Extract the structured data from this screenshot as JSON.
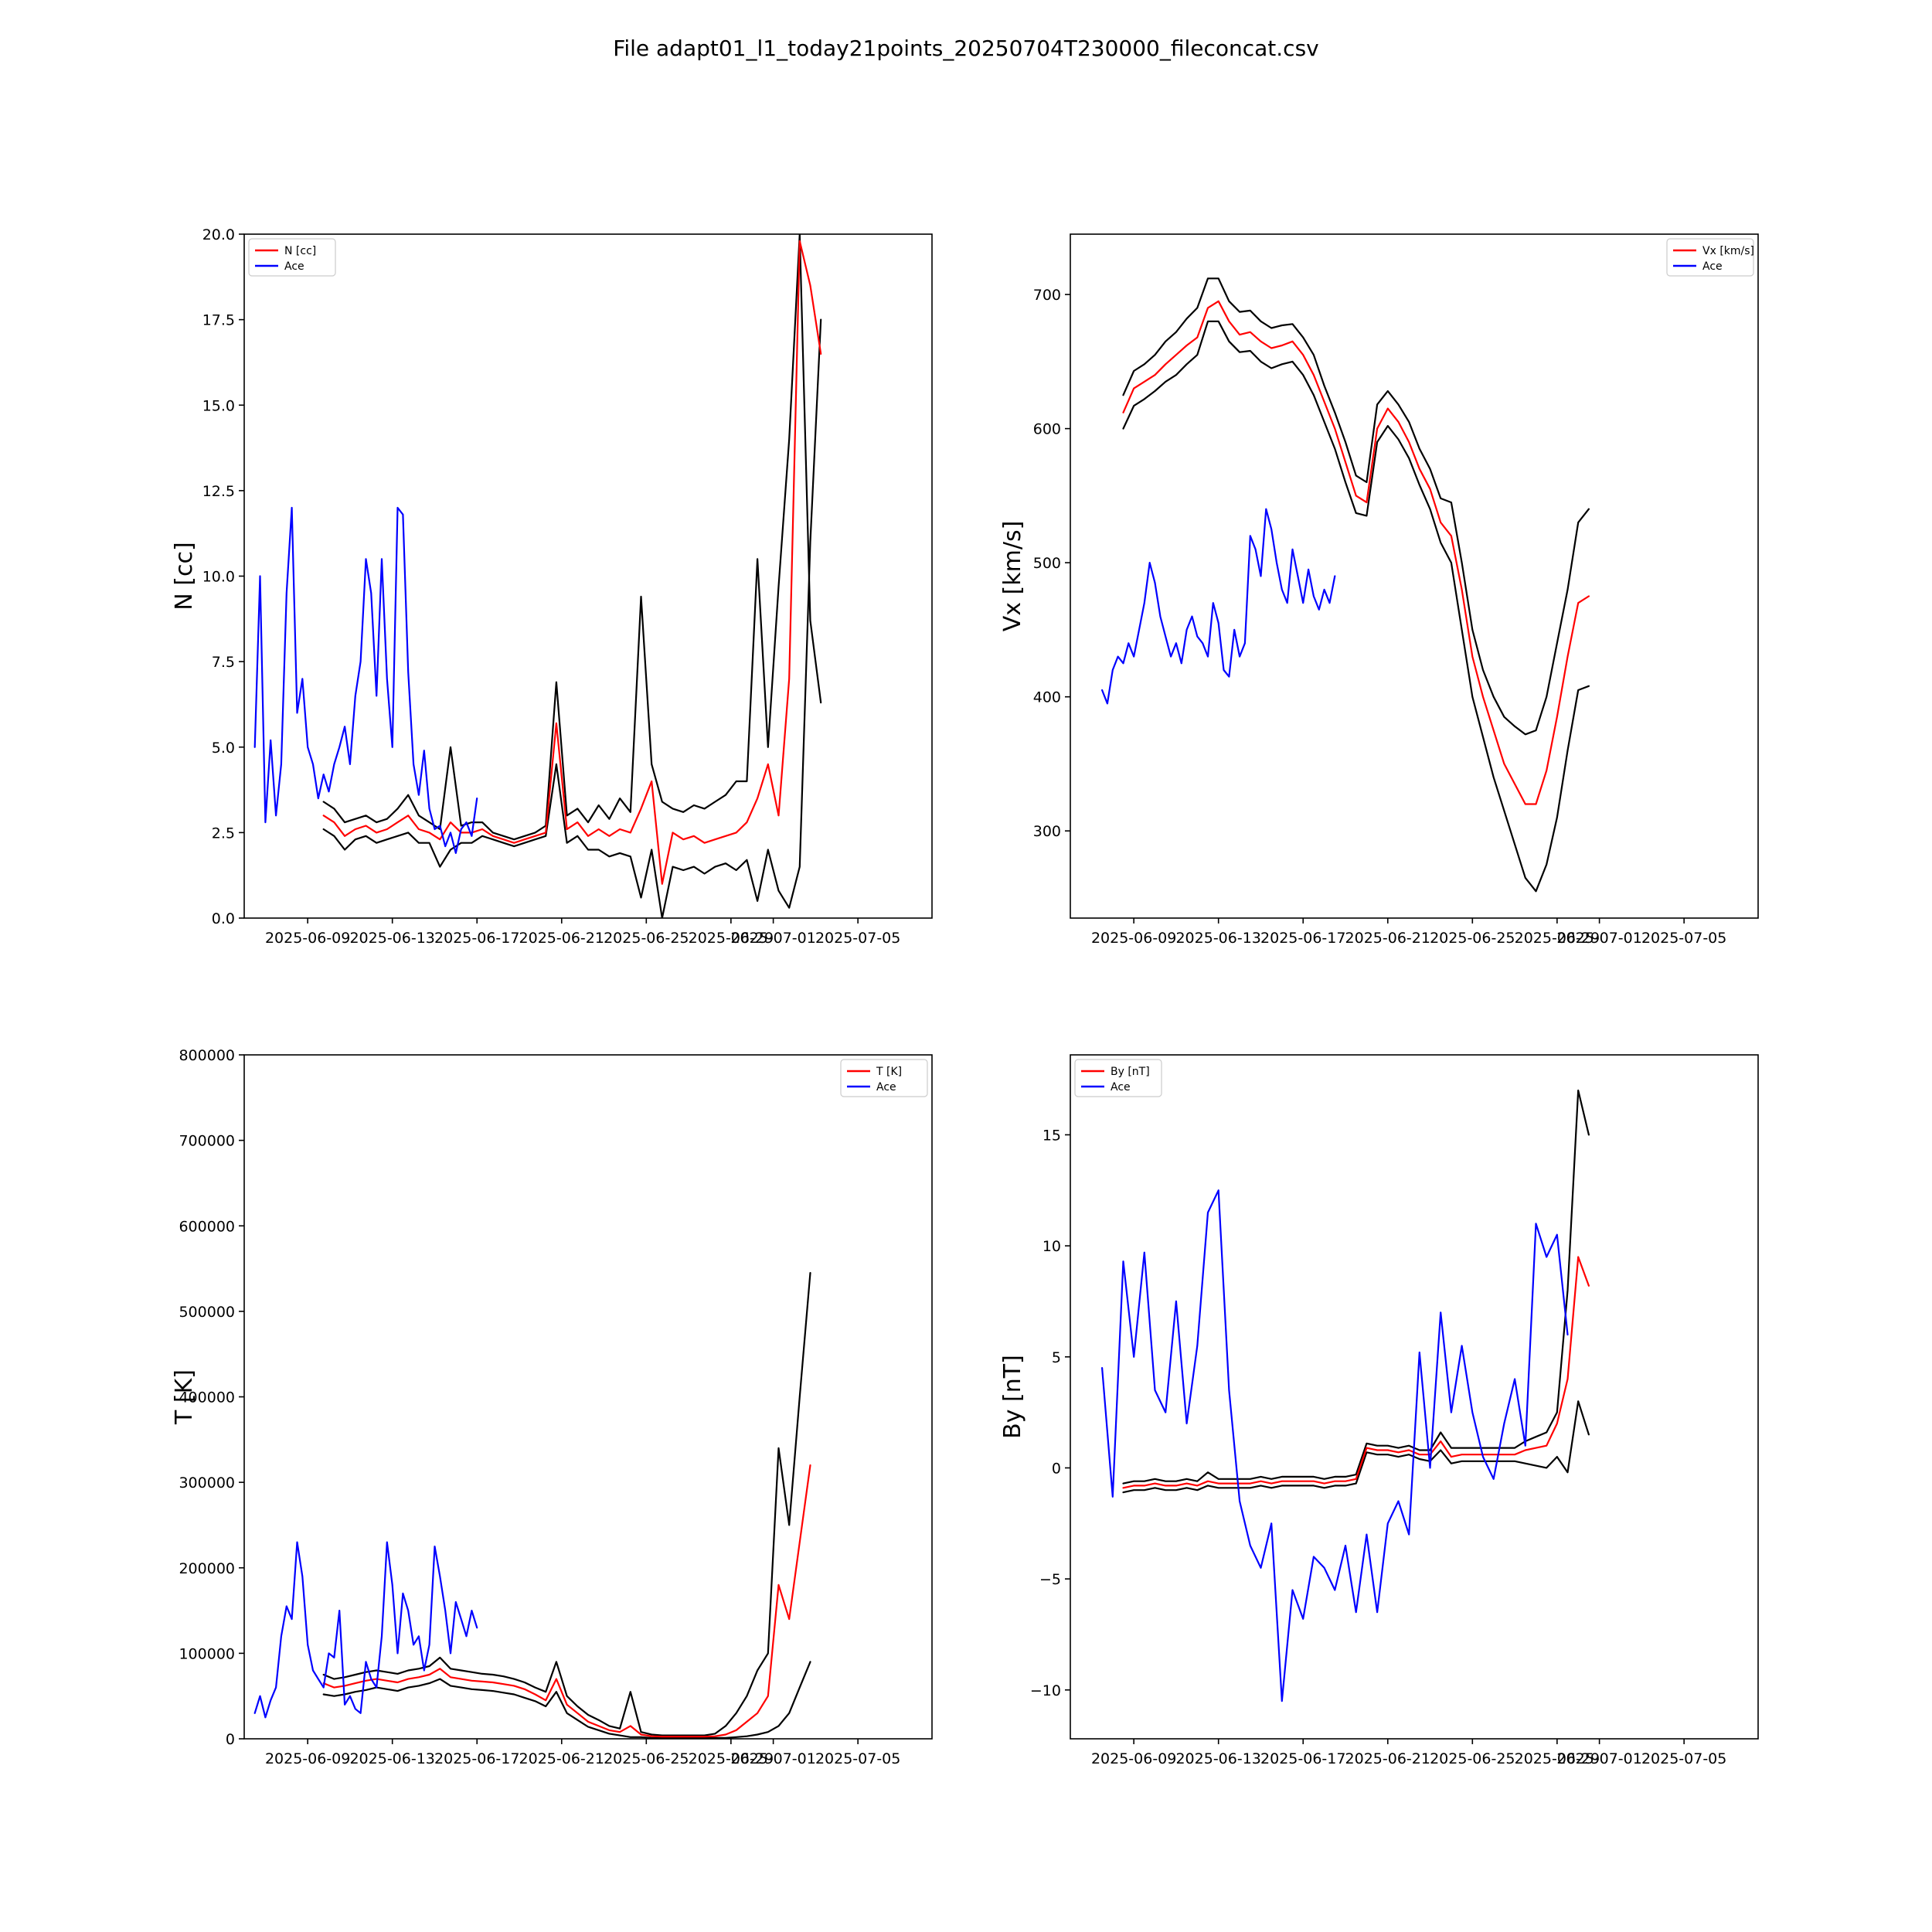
{
  "figure_title": "File adapt01_l1_today21points_20250704T230000_fileconcat.csv",
  "colors": {
    "prediction": "#ff0000",
    "ace": "#0000ff",
    "bounds": "#000000",
    "axes": "#000000"
  },
  "chart_data": [
    {
      "id": "density",
      "type": "line",
      "ylabel": "N [cc]",
      "ylim": [
        0,
        20
      ],
      "yticks": [
        "0.0",
        "2.5",
        "5.0",
        "7.5",
        "10.0",
        "12.5",
        "15.0",
        "17.5",
        "20.0"
      ],
      "ytick_values": [
        0,
        2.5,
        5,
        7.5,
        10,
        12.5,
        15,
        17.5,
        20
      ],
      "xlim": [
        "2025-06-06",
        "2025-07-08T12:00"
      ],
      "xticks": [
        "2025-06-09",
        "2025-06-13",
        "2025-06-17",
        "2025-06-21",
        "2025-06-25",
        "2025-06-29",
        "2025-07-01",
        "2025-07-05"
      ],
      "legend": {
        "position": "upper left",
        "entries": [
          "N [cc]",
          "Ace"
        ]
      },
      "series": [
        {
          "name": "Ace",
          "role": "ace",
          "start": "2025-06-06T12:00",
          "end": "2025-06-16T18:00",
          "step_hours": 6,
          "values": [
            5.0,
            10.0,
            2.8,
            5.2,
            3.0,
            4.5,
            9.5,
            12.0,
            6.0,
            7.0,
            5.0,
            4.5,
            3.5,
            4.2,
            3.7,
            4.5,
            5.0,
            5.6,
            4.5,
            6.5,
            7.5,
            10.5,
            9.5,
            6.5,
            10.5,
            7.0,
            5.0,
            12.0,
            11.8,
            7.2,
            4.5,
            3.6,
            4.9,
            3.2,
            2.6,
            2.7,
            2.1,
            2.5,
            1.9,
            2.6,
            2.8,
            2.4,
            3.5
          ]
        },
        {
          "name": "N [cc]",
          "role": "prediction",
          "start": "2025-06-09T18:00",
          "end": "2025-07-08T00:00",
          "step_hours": 12,
          "values": [
            3.0,
            2.8,
            2.4,
            2.6,
            2.7,
            2.5,
            2.6,
            2.8,
            3.0,
            2.6,
            2.5,
            2.3,
            2.8,
            2.5,
            2.5,
            2.6,
            2.4,
            2.3,
            2.2,
            2.3,
            2.4,
            2.5,
            5.7,
            2.6,
            2.8,
            2.4,
            2.6,
            2.4,
            2.6,
            2.5,
            3.2,
            4.0,
            1.0,
            2.5,
            2.3,
            2.4,
            2.2,
            2.3,
            2.4,
            2.5,
            2.8,
            3.5,
            4.5,
            3.0,
            7.0,
            19.8,
            18.5,
            16.5
          ]
        },
        {
          "name": "upper",
          "role": "bounds",
          "start": "2025-06-09T18:00",
          "end": "2025-07-08T00:00",
          "step_hours": 12,
          "values": [
            3.4,
            3.2,
            2.8,
            2.9,
            3.0,
            2.8,
            2.9,
            3.2,
            3.6,
            3.0,
            2.8,
            2.6,
            5.0,
            2.7,
            2.8,
            2.8,
            2.5,
            2.4,
            2.3,
            2.4,
            2.5,
            2.7,
            6.9,
            3.0,
            3.2,
            2.8,
            3.3,
            2.9,
            3.5,
            3.1,
            9.4,
            4.5,
            3.4,
            3.2,
            3.1,
            3.3,
            3.2,
            3.4,
            3.6,
            4.0,
            4.0,
            10.5,
            5.0,
            9.7,
            14.0,
            20.0,
            8.7,
            6.3
          ]
        },
        {
          "name": "lower",
          "role": "bounds",
          "start": "2025-06-09T18:00",
          "end": "2025-07-08T00:00",
          "step_hours": 12,
          "values": [
            2.6,
            2.4,
            2.0,
            2.3,
            2.4,
            2.2,
            2.3,
            2.4,
            2.5,
            2.2,
            2.2,
            1.5,
            2.0,
            2.2,
            2.2,
            2.4,
            2.3,
            2.2,
            2.1,
            2.2,
            2.3,
            2.4,
            4.5,
            2.2,
            2.4,
            2.0,
            2.0,
            1.8,
            1.9,
            1.8,
            0.6,
            2.0,
            0.0,
            1.5,
            1.4,
            1.5,
            1.3,
            1.5,
            1.6,
            1.4,
            1.7,
            0.5,
            2.0,
            0.8,
            0.3,
            1.5,
            11.0,
            17.5
          ]
        }
      ]
    },
    {
      "id": "velocity",
      "type": "line",
      "ylabel": "Vx [km/s]",
      "ylim": [
        235,
        745
      ],
      "yticks": [
        "300",
        "400",
        "500",
        "600",
        "700"
      ],
      "ytick_values": [
        300,
        400,
        500,
        600,
        700
      ],
      "xlim": [
        "2025-06-06",
        "2025-07-08T12:00"
      ],
      "xticks": [
        "2025-06-09",
        "2025-06-13",
        "2025-06-17",
        "2025-06-21",
        "2025-06-25",
        "2025-06-29",
        "2025-07-01",
        "2025-07-05"
      ],
      "legend": {
        "position": "upper right",
        "entries": [
          "Vx [km/s]",
          "Ace"
        ]
      },
      "series": [
        {
          "name": "Ace",
          "role": "ace",
          "start": "2025-06-07T12:00",
          "end": "2025-06-18T12:00",
          "step_hours": 6,
          "values": [
            405,
            395,
            420,
            430,
            425,
            440,
            430,
            450,
            470,
            500,
            485,
            460,
            445,
            430,
            440,
            425,
            450,
            460,
            445,
            440,
            430,
            470,
            455,
            420,
            415,
            450,
            430,
            440,
            520,
            510,
            490,
            540,
            525,
            500,
            480,
            470,
            510,
            490,
            470,
            495,
            475,
            465,
            480,
            470,
            490
          ]
        },
        {
          "name": "Vx [km/s]",
          "role": "prediction",
          "start": "2025-06-08T12:00",
          "end": "2025-07-08T12:00",
          "step_hours": 12,
          "values": [
            612,
            630,
            635,
            640,
            648,
            655,
            662,
            668,
            690,
            695,
            680,
            670,
            672,
            665,
            660,
            662,
            665,
            655,
            640,
            620,
            600,
            575,
            550,
            545,
            600,
            615,
            605,
            590,
            570,
            555,
            530,
            520,
            480,
            430,
            400,
            375,
            350,
            335,
            320,
            320,
            345,
            385,
            430,
            470,
            475
          ]
        },
        {
          "name": "upper",
          "role": "bounds",
          "start": "2025-06-08T12:00",
          "end": "2025-07-08T12:00",
          "step_hours": 12,
          "values": [
            625,
            643,
            648,
            655,
            665,
            672,
            682,
            690,
            712,
            712,
            695,
            687,
            688,
            680,
            675,
            677,
            678,
            668,
            655,
            632,
            612,
            590,
            565,
            560,
            618,
            628,
            618,
            605,
            585,
            570,
            548,
            545,
            500,
            450,
            420,
            400,
            385,
            378,
            372,
            375,
            400,
            440,
            480,
            530,
            540
          ]
        },
        {
          "name": "lower",
          "role": "bounds",
          "start": "2025-06-08T12:00",
          "end": "2025-07-08T12:00",
          "step_hours": 12,
          "values": [
            600,
            617,
            622,
            628,
            635,
            640,
            648,
            655,
            680,
            680,
            665,
            657,
            658,
            650,
            645,
            648,
            650,
            640,
            625,
            605,
            585,
            560,
            537,
            535,
            590,
            602,
            592,
            578,
            558,
            540,
            515,
            500,
            450,
            400,
            370,
            340,
            315,
            290,
            265,
            255,
            275,
            310,
            360,
            405,
            408
          ]
        }
      ]
    },
    {
      "id": "temperature",
      "type": "line",
      "ylabel": "T [K]",
      "ylim": [
        0,
        800000
      ],
      "yticks": [
        "0",
        "100000",
        "200000",
        "300000",
        "400000",
        "500000",
        "600000",
        "700000",
        "800000"
      ],
      "ytick_values": [
        0,
        100000,
        200000,
        300000,
        400000,
        500000,
        600000,
        700000,
        800000
      ],
      "xlim": [
        "2025-06-06",
        "2025-07-08T12:00"
      ],
      "xticks": [
        "2025-06-09",
        "2025-06-13",
        "2025-06-17",
        "2025-06-21",
        "2025-06-25",
        "2025-06-29",
        "2025-07-01",
        "2025-07-05"
      ],
      "legend": {
        "position": "upper right",
        "entries": [
          "T [K]",
          "Ace"
        ]
      },
      "series": [
        {
          "name": "Ace",
          "role": "ace",
          "start": "2025-06-06T12:00",
          "end": "2025-06-16T18:00",
          "step_hours": 6,
          "values": [
            30000,
            50000,
            25000,
            45000,
            60000,
            120000,
            155000,
            140000,
            230000,
            190000,
            110000,
            80000,
            70000,
            60000,
            100000,
            95000,
            150000,
            40000,
            50000,
            35000,
            30000,
            90000,
            70000,
            60000,
            120000,
            230000,
            180000,
            100000,
            170000,
            150000,
            110000,
            120000,
            80000,
            110000,
            225000,
            190000,
            150000,
            100000,
            160000,
            140000,
            120000,
            150000,
            130000
          ]
        },
        {
          "name": "T [K]",
          "role": "prediction",
          "start": "2025-06-09T18:00",
          "end": "2025-07-08T00:00",
          "step_hours": 12,
          "values": [
            65000,
            60000,
            62000,
            65000,
            68000,
            70000,
            68000,
            66000,
            70000,
            72000,
            75000,
            82000,
            72000,
            70000,
            68000,
            67000,
            66000,
            64000,
            62000,
            58000,
            52000,
            45000,
            70000,
            40000,
            30000,
            20000,
            15000,
            10000,
            8000,
            15000,
            5000,
            3000,
            2500,
            2500,
            2500,
            2500,
            2500,
            3000,
            5000,
            10000,
            20000,
            30000,
            50000,
            180000,
            140000,
            230000,
            320000
          ]
        },
        {
          "name": "upper",
          "role": "bounds",
          "start": "2025-06-09T18:00",
          "end": "2025-07-08T00:00",
          "step_hours": 12,
          "values": [
            75000,
            70000,
            72000,
            75000,
            78000,
            80000,
            78000,
            76000,
            80000,
            82000,
            85000,
            95000,
            82000,
            80000,
            78000,
            76000,
            75000,
            73000,
            70000,
            66000,
            60000,
            55000,
            90000,
            50000,
            38000,
            28000,
            22000,
            15000,
            12000,
            55000,
            8000,
            5000,
            4000,
            4000,
            4000,
            4000,
            4000,
            6000,
            15000,
            30000,
            50000,
            80000,
            100000,
            340000,
            250000,
            400000,
            545000
          ]
        },
        {
          "name": "lower",
          "role": "bounds",
          "start": "2025-06-09T18:00",
          "end": "2025-07-08T00:00",
          "step_hours": 12,
          "values": [
            52000,
            50000,
            52000,
            55000,
            57000,
            60000,
            58000,
            56000,
            60000,
            62000,
            65000,
            70000,
            62000,
            60000,
            58000,
            57000,
            56000,
            54000,
            52000,
            48000,
            44000,
            38000,
            55000,
            30000,
            22000,
            14000,
            10000,
            6000,
            4000,
            2000,
            2000,
            1000,
            1000,
            1000,
            1000,
            1000,
            1000,
            1000,
            1000,
            2000,
            3000,
            5000,
            8000,
            15000,
            30000,
            60000,
            90000
          ]
        }
      ]
    },
    {
      "id": "by",
      "type": "line",
      "ylabel": "By [nT]",
      "ylim": [
        -12.2,
        18.6
      ],
      "yticks": [
        "−10",
        "−5",
        "0",
        "5",
        "10",
        "15"
      ],
      "ytick_values": [
        -10,
        -5,
        0,
        5,
        10,
        15
      ],
      "xlim": [
        "2025-06-06",
        "2025-07-08T12:00"
      ],
      "xticks": [
        "2025-06-09",
        "2025-06-13",
        "2025-06-17",
        "2025-06-21",
        "2025-06-25",
        "2025-06-29",
        "2025-07-01",
        "2025-07-05"
      ],
      "legend": {
        "position": "upper left",
        "entries": [
          "By [nT]",
          "Ace"
        ]
      },
      "series": [
        {
          "name": "Ace",
          "role": "ace",
          "start": "2025-06-07T12:00",
          "end": "2025-07-08T12:00",
          "step_hours": 12,
          "values": [
            4.5,
            -1.3,
            9.3,
            5.0,
            9.7,
            3.5,
            2.5,
            7.5,
            2.0,
            5.5,
            11.5,
            12.5,
            3.5,
            -1.5,
            -3.5,
            -4.5,
            -2.5,
            -10.5,
            -5.5,
            -6.8,
            -4.0,
            -4.5,
            -5.5,
            -3.5,
            -6.5,
            -3.0,
            -6.5,
            -2.5,
            -1.5,
            -3.0,
            5.2,
            0.0,
            7.0,
            2.5,
            5.5,
            2.5,
            0.5,
            -0.5,
            2.0,
            4.0,
            1.0,
            11.0,
            9.5,
            10.5,
            6.0
          ]
        },
        {
          "name": "By [nT]",
          "role": "prediction",
          "start": "2025-06-08T12:00",
          "end": "2025-07-08T12:00",
          "step_hours": 12,
          "values": [
            -0.9,
            -0.8,
            -0.8,
            -0.7,
            -0.8,
            -0.8,
            -0.7,
            -0.8,
            -0.6,
            -0.7,
            -0.7,
            -0.7,
            -0.7,
            -0.6,
            -0.7,
            -0.6,
            -0.6,
            -0.6,
            -0.6,
            -0.7,
            -0.6,
            -0.6,
            -0.5,
            0.9,
            0.8,
            0.8,
            0.7,
            0.8,
            0.6,
            0.6,
            1.2,
            0.5,
            0.6,
            0.6,
            0.6,
            0.6,
            0.6,
            0.6,
            0.8,
            0.9,
            1.0,
            2.0,
            4.0,
            9.5,
            8.2
          ]
        },
        {
          "name": "upper",
          "role": "bounds",
          "start": "2025-06-08T12:00",
          "end": "2025-07-08T12:00",
          "step_hours": 12,
          "values": [
            -0.7,
            -0.6,
            -0.6,
            -0.5,
            -0.6,
            -0.6,
            -0.5,
            -0.6,
            -0.2,
            -0.5,
            -0.5,
            -0.5,
            -0.5,
            -0.4,
            -0.5,
            -0.4,
            -0.4,
            -0.4,
            -0.4,
            -0.5,
            -0.4,
            -0.4,
            -0.3,
            1.1,
            1.0,
            1.0,
            0.9,
            1.0,
            0.8,
            0.8,
            1.6,
            0.9,
            0.9,
            0.9,
            0.9,
            0.9,
            0.9,
            0.9,
            1.2,
            1.4,
            1.6,
            2.5,
            8.0,
            17.0,
            15.0
          ]
        },
        {
          "name": "lower",
          "role": "bounds",
          "start": "2025-06-08T12:00",
          "end": "2025-07-08T12:00",
          "step_hours": 12,
          "values": [
            -1.1,
            -1.0,
            -1.0,
            -0.9,
            -1.0,
            -1.0,
            -0.9,
            -1.0,
            -0.8,
            -0.9,
            -0.9,
            -0.9,
            -0.9,
            -0.8,
            -0.9,
            -0.8,
            -0.8,
            -0.8,
            -0.8,
            -0.9,
            -0.8,
            -0.8,
            -0.7,
            0.7,
            0.6,
            0.6,
            0.5,
            0.6,
            0.4,
            0.3,
            0.8,
            0.2,
            0.3,
            0.3,
            0.3,
            0.3,
            0.3,
            0.3,
            0.2,
            0.1,
            0.0,
            0.5,
            -0.2,
            3.0,
            1.5
          ]
        }
      ]
    }
  ]
}
